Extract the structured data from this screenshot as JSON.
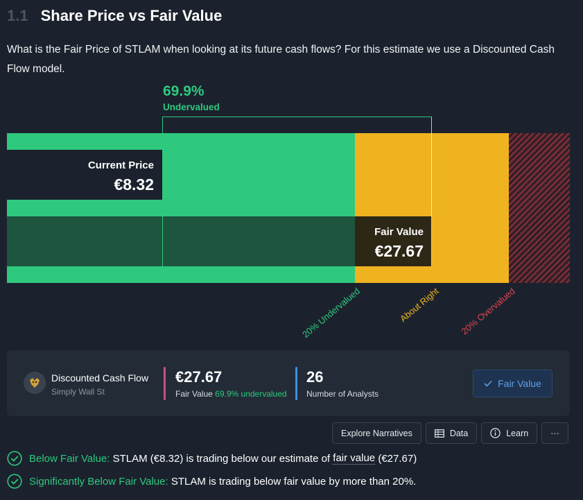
{
  "header": {
    "number": "1.1",
    "title": "Share Price vs Fair Value"
  },
  "description": "What is the Fair Price of STLAM when looking at its future cash flows? For this estimate we use a Discounted Cash Flow model.",
  "chart": {
    "undervalued_percent": "69.9%",
    "undervalued_label": "Undervalued",
    "current_price_label": "Current Price",
    "current_price_value": "€8.32",
    "fair_value_label": "Fair Value",
    "fair_value_value": "€27.67",
    "zone_labels": {
      "under": "20% Undervalued",
      "about": "About Right",
      "over": "20% Overvalued"
    },
    "colors": {
      "green": "#2ec97e",
      "yellow": "#efb320",
      "red": "#e0434d"
    }
  },
  "model_card": {
    "model_name": "Discounted Cash Flow",
    "source": "Simply Wall St",
    "fair_value": "€27.67",
    "fair_value_caption": "Fair Value",
    "fair_value_pct": "69.9% undervalued",
    "analysts_count": "26",
    "analysts_caption": "Number of Analysts",
    "button_label": "Fair Value"
  },
  "actions": {
    "explore": "Explore Narratives",
    "data": "Data",
    "learn": "Learn",
    "more": "···"
  },
  "checks": [
    {
      "title": "Below Fair Value:",
      "text_a": "STLAM (€8.32) is trading below our estimate of",
      "link": "fair value",
      "text_b": "(€27.67)"
    },
    {
      "title": "Significantly Below Fair Value:",
      "text_a": "STLAM is trading below fair value by more than 20%."
    }
  ]
}
